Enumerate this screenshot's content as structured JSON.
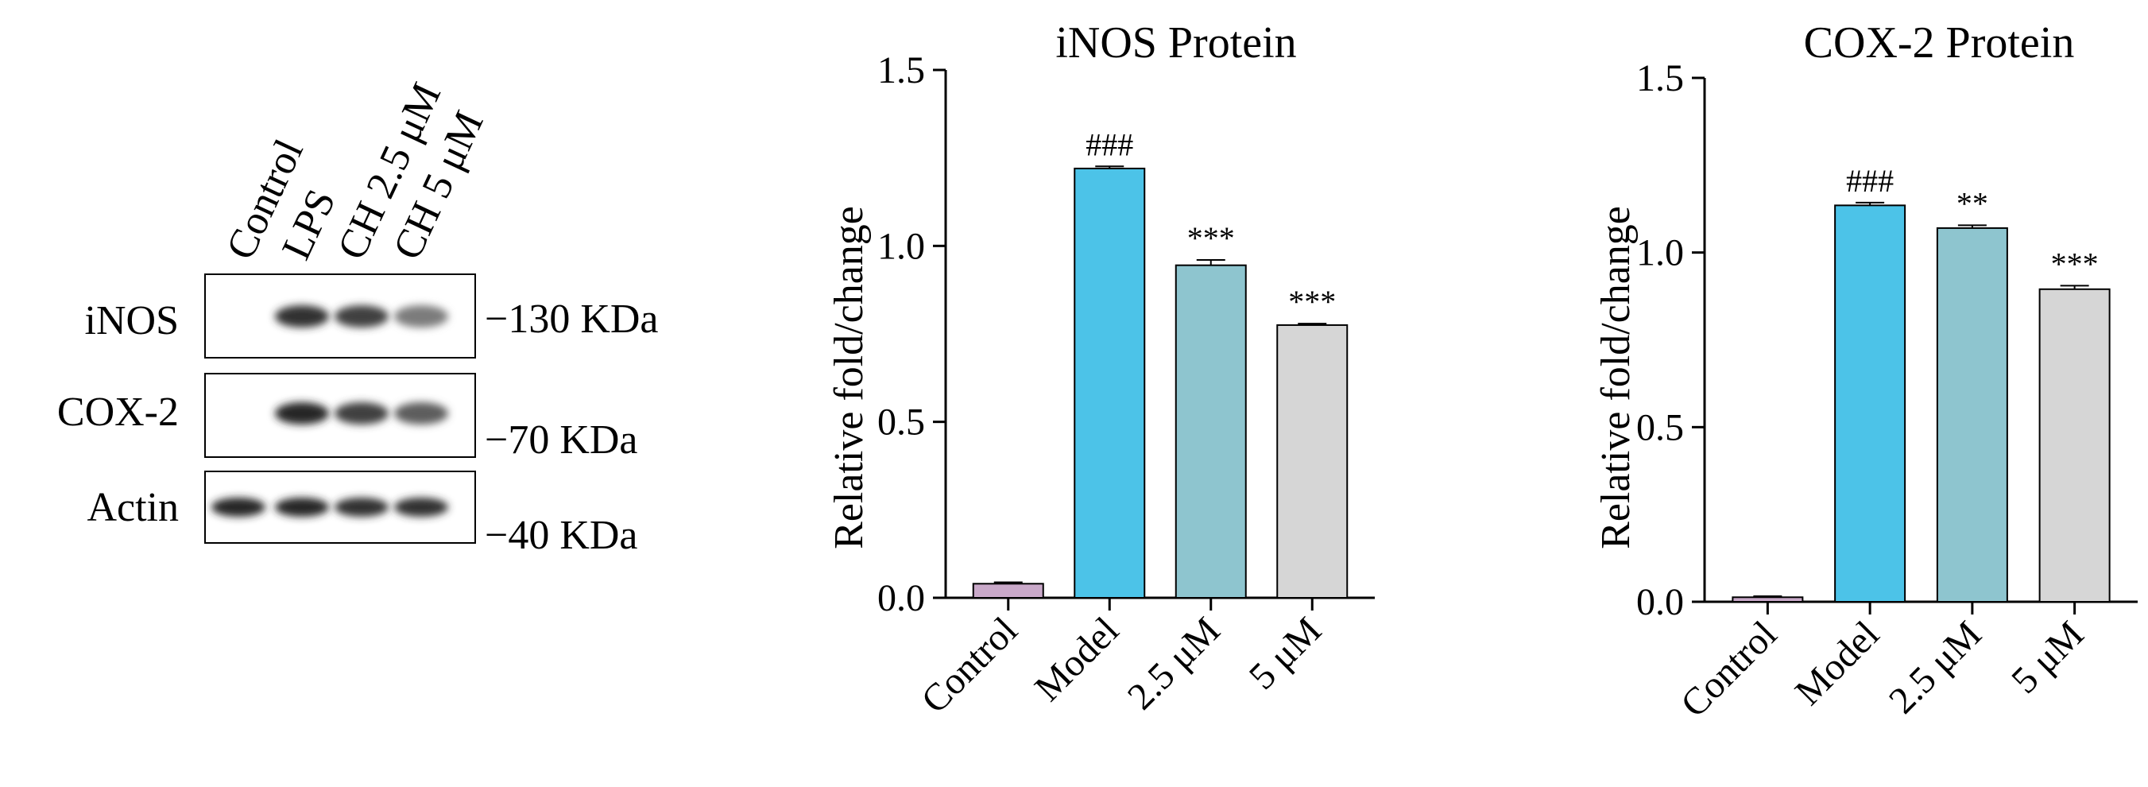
{
  "blot": {
    "lanes": [
      "Control",
      "LPS",
      "CH 2.5 μM",
      "CH 5 μM"
    ],
    "rows": [
      {
        "label": "iNOS",
        "marker": "−130 KDa",
        "intensity": [
          0.0,
          0.95,
          0.85,
          0.45
        ]
      },
      {
        "label": "COX-2",
        "marker": "−70 KDa",
        "intensity": [
          0.0,
          1.0,
          0.85,
          0.65
        ]
      },
      {
        "label": "Actin",
        "marker": "−40 KDa",
        "intensity": [
          1.0,
          1.0,
          0.95,
          0.95
        ]
      }
    ]
  },
  "chart_data": [
    {
      "type": "bar",
      "title": "iNOS Protein",
      "ylabel": "Relative fold/change",
      "xlabel": "",
      "categories": [
        "Control",
        "Model",
        "2.5 μM",
        "5 μM"
      ],
      "values": [
        0.04,
        1.22,
        0.945,
        0.775
      ],
      "errors": [
        0.004,
        0.006,
        0.015,
        0.004
      ],
      "annotations": [
        "",
        "###",
        "***",
        "***"
      ],
      "ylim": [
        0,
        1.5
      ],
      "yticks": [
        "0.0",
        "0.5",
        "1.0",
        "1.5"
      ],
      "colors": [
        "#c9a9c9",
        "#4cc3e8",
        "#8ec5cf",
        "#d6d6d6"
      ]
    },
    {
      "type": "bar",
      "title": "COX-2 Protein",
      "ylabel": "Relative fold/change",
      "xlabel": "",
      "categories": [
        "Control",
        "Model",
        "2.5 μM",
        "5 μM"
      ],
      "values": [
        0.013,
        1.135,
        1.07,
        0.895
      ],
      "errors": [
        0.003,
        0.008,
        0.008,
        0.01
      ],
      "annotations": [
        "",
        "###",
        "**",
        "***"
      ],
      "ylim": [
        0,
        1.5
      ],
      "yticks": [
        "0.0",
        "0.5",
        "1.0",
        "1.5"
      ],
      "colors": [
        "#c9a9c9",
        "#4cc3e8",
        "#8ec5cf",
        "#d6d6d6"
      ]
    }
  ]
}
